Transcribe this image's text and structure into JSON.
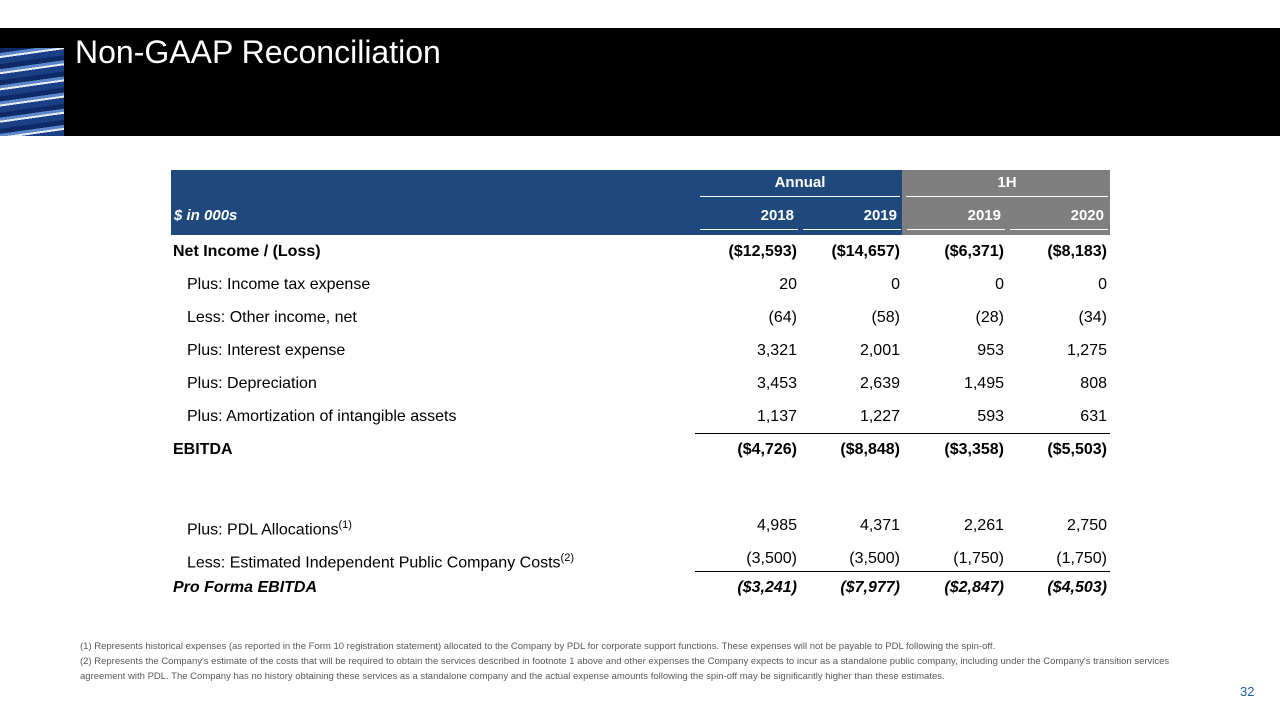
{
  "header": {
    "title": "Non-GAAP Reconciliation"
  },
  "table": {
    "group_headers": [
      "Annual",
      "1H"
    ],
    "unit_label": "$ in 000s",
    "years": [
      "2018",
      "2019",
      "2019",
      "2020"
    ],
    "rows": [
      {
        "label": "Net Income / (Loss)",
        "values": [
          "($12,593)",
          "($14,657)",
          "($6,371)",
          "($8,183)"
        ]
      },
      {
        "label": "Plus: Income tax expense",
        "values": [
          "20",
          "0",
          "0",
          "0"
        ]
      },
      {
        "label": "Less: Other income, net",
        "values": [
          "(64)",
          "(58)",
          "(28)",
          "(34)"
        ]
      },
      {
        "label": "Plus: Interest expense",
        "values": [
          "3,321",
          "2,001",
          "953",
          "1,275"
        ]
      },
      {
        "label": "Plus: Depreciation",
        "values": [
          "3,453",
          "2,639",
          "1,495",
          "808"
        ]
      },
      {
        "label": "Plus: Amortization of intangible assets",
        "values": [
          "1,137",
          "1,227",
          "593",
          "631"
        ]
      },
      {
        "label": "EBITDA",
        "values": [
          "($4,726)",
          "($8,848)",
          "($3,358)",
          "($5,503)"
        ]
      },
      {
        "label": "Plus: PDL Allocations",
        "note": "(1)",
        "values": [
          "4,985",
          "4,371",
          "2,261",
          "2,750"
        ]
      },
      {
        "label": "Less: Estimated Independent Public Company Costs",
        "note": "(2)",
        "values": [
          "(3,500)",
          "(3,500)",
          "(1,750)",
          "(1,750)"
        ]
      },
      {
        "label": "Pro Forma EBITDA",
        "values": [
          "($3,241)",
          "($7,977)",
          "($2,847)",
          "($4,503)"
        ]
      }
    ]
  },
  "footnotes": [
    "(1) Represents historical expenses (as reported in the Form 10 registration statement) allocated to the Company by PDL for corporate support functions. These expenses will not be payable to PDL following the spin-off.",
    "(2) Represents the Company's estimate of the costs that will be required to obtain the services described in footnote 1 above and other expenses the Company expects to incur as a standalone public company, including under the Company's transition services agreement with PDL. The Company has no history obtaining these services as a standalone company and the actual expense amounts following the spin-off may be significantly higher than these estimates."
  ],
  "page_number": "32"
}
